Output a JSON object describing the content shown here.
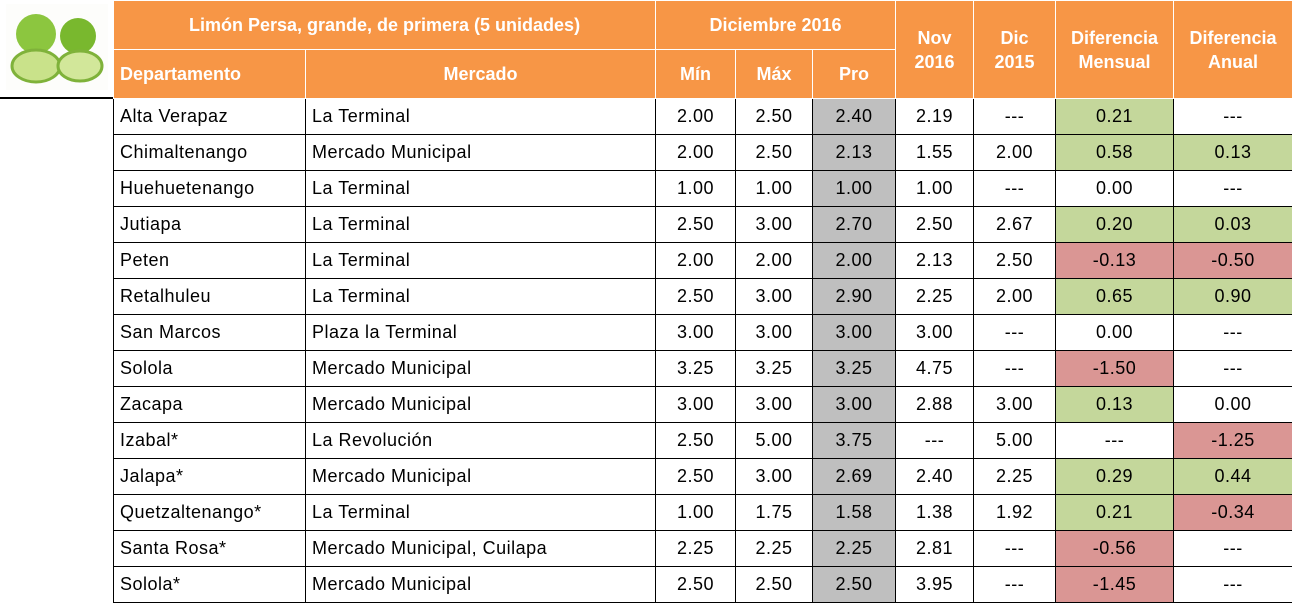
{
  "header": {
    "title": "Limón Persa, grande, de primera (5 unidades)",
    "group": "Diciembre 2016",
    "columns": [
      "Departamento",
      "Mercado",
      "Mín",
      "Máx",
      "Pro",
      "Nov 2016",
      "Dic 2015",
      "Diferencia Mensual",
      "Diferencia Anual"
    ]
  },
  "table": {
    "rows": [
      [
        "Alta Verapaz",
        "La Terminal",
        "2.00",
        "2.50",
        "2.40",
        "2.19",
        "---",
        "0.21",
        "---"
      ],
      [
        "Chimaltenango",
        "Mercado Municipal",
        "2.00",
        "2.50",
        "2.13",
        "1.55",
        "2.00",
        "0.58",
        "0.13"
      ],
      [
        "Huehuetenango",
        "La Terminal",
        "1.00",
        "1.00",
        "1.00",
        "1.00",
        "---",
        "0.00",
        "---"
      ],
      [
        "Jutiapa",
        "La Terminal",
        "2.50",
        "3.00",
        "2.70",
        "2.50",
        "2.67",
        "0.20",
        "0.03"
      ],
      [
        "Peten",
        "La Terminal",
        "2.00",
        "2.00",
        "2.00",
        "2.13",
        "2.50",
        "-0.13",
        "-0.50"
      ],
      [
        "Retalhuleu",
        "La Terminal",
        "2.50",
        "3.00",
        "2.90",
        "2.25",
        "2.00",
        "0.65",
        "0.90"
      ],
      [
        "San Marcos",
        "Plaza la Terminal",
        "3.00",
        "3.00",
        "3.00",
        "3.00",
        "---",
        "0.00",
        "---"
      ],
      [
        "Solola",
        "Mercado Municipal",
        "3.25",
        "3.25",
        "3.25",
        "4.75",
        "---",
        "-1.50",
        "---"
      ],
      [
        "Zacapa",
        "Mercado Municipal",
        "3.00",
        "3.00",
        "3.00",
        "2.88",
        "3.00",
        "0.13",
        "0.00"
      ],
      [
        "Izabal*",
        "La Revolución",
        "2.50",
        "5.00",
        "3.75",
        "---",
        "5.00",
        "---",
        "-1.25"
      ],
      [
        "Jalapa*",
        "Mercado Municipal",
        "2.50",
        "3.00",
        "2.69",
        "2.40",
        "2.25",
        "0.29",
        "0.44"
      ],
      [
        "Quetzaltenango*",
        "La Terminal",
        "1.00",
        "1.75",
        "1.58",
        "1.38",
        "1.92",
        "0.21",
        "-0.34"
      ],
      [
        "Santa Rosa*",
        "Mercado Municipal, Cuilapa",
        "2.25",
        "2.25",
        "2.25",
        "2.81",
        "---",
        "-0.56",
        "---"
      ],
      [
        "Solola*",
        "Mercado Municipal",
        "2.50",
        "2.50",
        "2.50",
        "3.95",
        "---",
        "-1.45",
        "---"
      ]
    ]
  }
}
